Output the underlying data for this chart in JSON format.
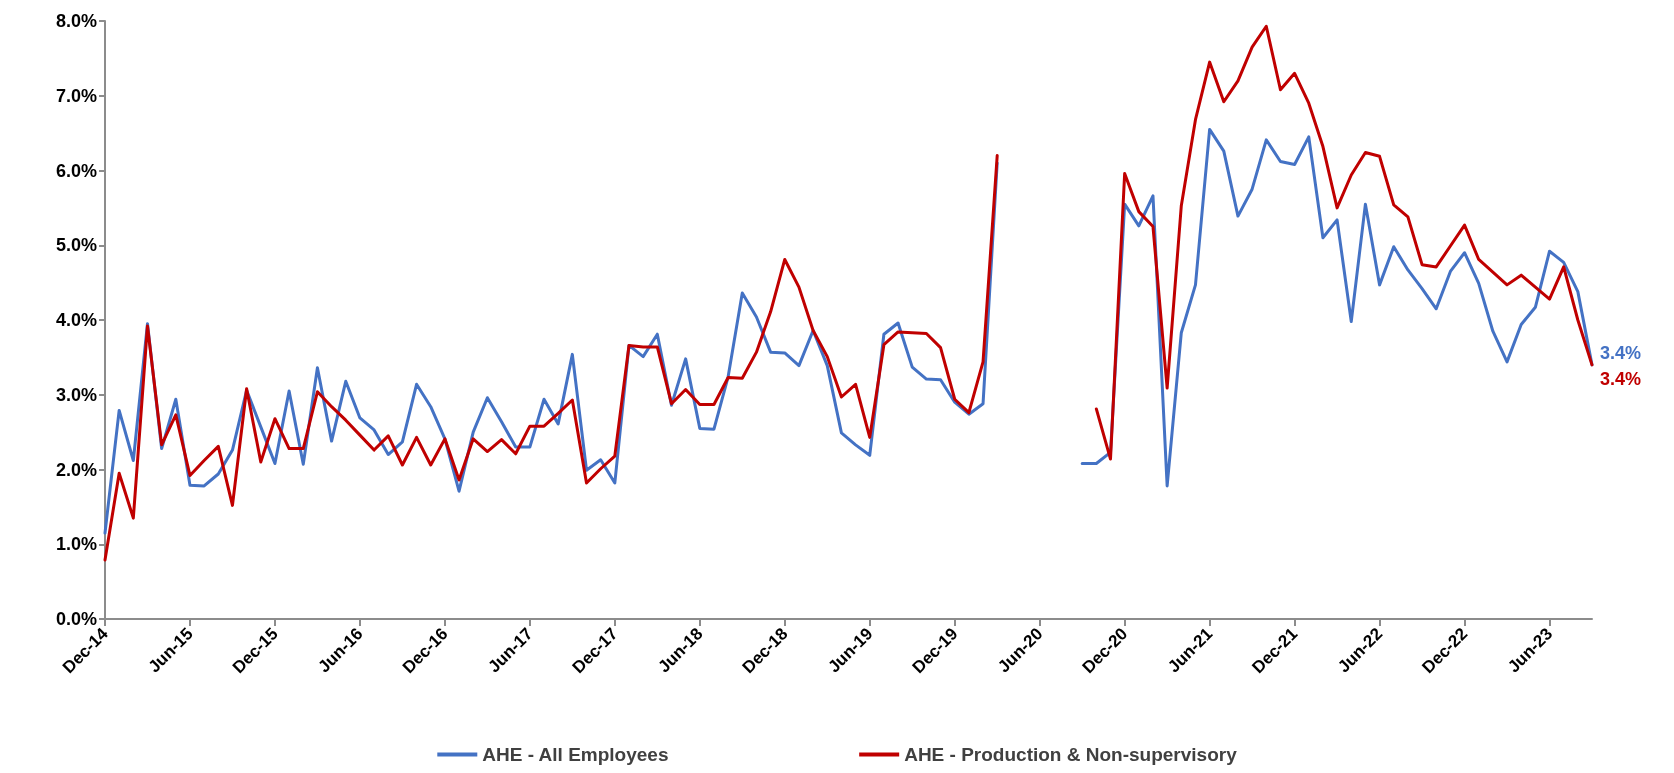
{
  "chart_data": {
    "type": "line",
    "x": [
      "2014-12",
      "2015-01",
      "2015-02",
      "2015-03",
      "2015-04",
      "2015-05",
      "2015-06",
      "2015-07",
      "2015-08",
      "2015-09",
      "2015-10",
      "2015-11",
      "2015-12",
      "2016-01",
      "2016-02",
      "2016-03",
      "2016-04",
      "2016-05",
      "2016-06",
      "2016-07",
      "2016-08",
      "2016-09",
      "2016-10",
      "2016-11",
      "2016-12",
      "2017-01",
      "2017-02",
      "2017-03",
      "2017-04",
      "2017-05",
      "2017-06",
      "2017-07",
      "2017-08",
      "2017-09",
      "2017-10",
      "2017-11",
      "2017-12",
      "2018-01",
      "2018-02",
      "2018-03",
      "2018-04",
      "2018-05",
      "2018-06",
      "2018-07",
      "2018-08",
      "2018-09",
      "2018-10",
      "2018-11",
      "2018-12",
      "2019-01",
      "2019-02",
      "2019-03",
      "2019-04",
      "2019-05",
      "2019-06",
      "2019-07",
      "2019-08",
      "2019-09",
      "2019-10",
      "2019-11",
      "2019-12",
      "2020-01",
      "2020-02",
      "2020-03",
      "2020-04",
      "2020-05",
      "2020-06",
      "2020-07",
      "2020-08",
      "2020-09",
      "2020-10",
      "2020-11",
      "2020-12",
      "2021-01",
      "2021-02",
      "2021-03",
      "2021-04",
      "2021-05",
      "2021-06",
      "2021-07",
      "2021-08",
      "2021-09",
      "2021-10",
      "2021-11",
      "2021-12",
      "2022-01",
      "2022-02",
      "2022-03",
      "2022-04",
      "2022-05",
      "2022-06",
      "2022-07",
      "2022-08",
      "2022-09",
      "2022-10",
      "2022-11",
      "2022-12",
      "2023-01",
      "2023-02",
      "2023-03",
      "2023-04",
      "2023-05",
      "2023-06",
      "2023-07",
      "2023-08",
      "2023-09"
    ],
    "series": [
      {
        "name": "AHE - All Employees",
        "color": "#4472c4",
        "values": [
          1.15,
          2.79,
          2.12,
          3.95,
          2.28,
          2.94,
          1.79,
          1.78,
          1.94,
          2.26,
          3.06,
          2.57,
          2.08,
          3.05,
          2.07,
          3.36,
          2.38,
          3.18,
          2.69,
          2.53,
          2.2,
          2.37,
          3.14,
          2.84,
          2.41,
          1.71,
          2.5,
          2.96,
          2.64,
          2.3,
          2.3,
          2.94,
          2.61,
          3.54,
          1.99,
          2.13,
          1.82,
          3.66,
          3.51,
          3.81,
          2.86,
          3.48,
          2.55,
          2.54,
          3.24,
          4.36,
          4.04,
          3.57,
          3.56,
          3.39,
          3.86,
          3.39,
          2.49,
          2.33,
          2.19,
          3.81,
          3.96,
          3.37,
          3.21,
          3.2,
          2.9,
          2.74,
          2.88,
          6.1,
          null,
          null,
          null,
          null,
          null,
          2.08,
          2.08,
          2.23,
          5.55,
          5.26,
          5.66,
          1.78,
          3.83,
          4.47,
          6.55,
          6.26,
          5.39,
          5.75,
          6.41,
          6.12,
          6.08,
          6.45,
          5.1,
          5.34,
          3.98,
          5.55,
          4.47,
          4.98,
          4.67,
          4.42,
          4.15,
          4.65,
          4.9,
          4.49,
          3.85,
          3.44,
          3.94,
          4.17,
          4.92,
          4.77,
          4.38,
          3.4
        ],
        "value_labels": [
          null,
          null,
          null,
          null,
          null,
          null,
          null,
          null,
          null,
          null,
          null,
          null,
          null,
          null,
          null,
          null,
          null,
          null,
          null,
          null,
          null,
          null,
          null,
          null,
          null,
          null,
          null,
          null,
          null,
          null,
          null,
          null,
          null,
          null,
          null,
          null,
          null,
          null,
          null,
          null,
          null,
          null,
          null,
          null,
          null,
          null,
          null,
          null,
          null,
          null,
          null,
          null,
          null,
          null,
          null,
          null,
          null,
          null,
          null,
          null,
          null,
          null,
          null,
          null,
          null,
          null,
          null,
          null,
          null,
          null,
          null,
          null,
          null,
          null,
          null,
          null,
          null,
          null,
          null,
          null,
          null,
          null,
          null,
          null,
          null,
          null,
          null,
          null,
          null,
          null,
          null,
          null,
          null,
          null,
          null,
          null,
          null,
          null,
          null,
          null,
          null,
          null,
          null,
          null,
          null,
          "3.4%"
        ]
      },
      {
        "name": "AHE - Production & Non-supervisory",
        "color": "#c00000",
        "values": [
          0.79,
          1.95,
          1.35,
          3.92,
          2.33,
          2.73,
          1.92,
          2.12,
          2.31,
          1.52,
          3.08,
          2.1,
          2.68,
          2.28,
          2.28,
          3.04,
          2.84,
          2.66,
          2.46,
          2.26,
          2.45,
          2.06,
          2.43,
          2.06,
          2.41,
          1.86,
          2.41,
          2.24,
          2.4,
          2.21,
          2.58,
          2.58,
          2.75,
          2.93,
          1.82,
          2.01,
          2.18,
          3.66,
          3.64,
          3.64,
          2.88,
          3.07,
          2.87,
          2.87,
          3.23,
          3.22,
          3.57,
          4.11,
          4.81,
          4.44,
          3.86,
          3.51,
          2.97,
          3.14,
          2.43,
          3.67,
          3.84,
          3.83,
          3.82,
          3.63,
          2.94,
          2.76,
          3.44,
          6.2,
          null,
          null,
          null,
          null,
          null,
          null,
          2.81,
          2.14,
          5.96,
          5.45,
          5.25,
          3.09,
          5.53,
          6.68,
          7.45,
          6.92,
          7.2,
          7.65,
          7.93,
          7.08,
          7.3,
          6.9,
          6.32,
          5.5,
          5.94,
          6.24,
          6.19,
          5.54,
          5.38,
          4.74,
          4.71,
          4.99,
          5.27,
          4.81,
          4.64,
          4.47,
          4.6,
          4.44,
          4.28,
          4.71,
          4.0,
          3.4
        ],
        "value_labels": [
          null,
          null,
          null,
          null,
          null,
          null,
          null,
          null,
          null,
          null,
          null,
          null,
          null,
          null,
          null,
          null,
          null,
          null,
          null,
          null,
          null,
          null,
          null,
          null,
          null,
          null,
          null,
          null,
          null,
          null,
          null,
          null,
          null,
          null,
          null,
          null,
          null,
          null,
          null,
          null,
          null,
          null,
          null,
          null,
          null,
          null,
          null,
          null,
          null,
          null,
          null,
          null,
          null,
          null,
          null,
          null,
          null,
          null,
          null,
          null,
          null,
          null,
          null,
          null,
          null,
          null,
          null,
          null,
          null,
          null,
          null,
          null,
          null,
          null,
          null,
          null,
          null,
          null,
          null,
          null,
          null,
          null,
          null,
          null,
          null,
          null,
          null,
          null,
          null,
          null,
          null,
          null,
          null,
          null,
          null,
          null,
          null,
          null,
          null,
          null,
          null,
          null,
          null,
          null,
          null,
          "3.4%"
        ]
      }
    ],
    "xlim": [
      "2014-12",
      "2023-09"
    ],
    "xticks": [
      {
        "value": "2014-12",
        "label": "Dec-14"
      },
      {
        "value": "2015-06",
        "label": "Jun-15"
      },
      {
        "value": "2015-12",
        "label": "Dec-15"
      },
      {
        "value": "2016-06",
        "label": "Jun-16"
      },
      {
        "value": "2016-12",
        "label": "Dec-16"
      },
      {
        "value": "2017-06",
        "label": "Jun-17"
      },
      {
        "value": "2017-12",
        "label": "Dec-17"
      },
      {
        "value": "2018-06",
        "label": "Jun-18"
      },
      {
        "value": "2018-12",
        "label": "Dec-18"
      },
      {
        "value": "2019-06",
        "label": "Jun-19"
      },
      {
        "value": "2019-12",
        "label": "Dec-19"
      },
      {
        "value": "2020-06",
        "label": "Jun-20"
      },
      {
        "value": "2020-12",
        "label": "Dec-20"
      },
      {
        "value": "2021-06",
        "label": "Jun-21"
      },
      {
        "value": "2021-12",
        "label": "Dec-21"
      },
      {
        "value": "2022-06",
        "label": "Jun-22"
      },
      {
        "value": "2022-12",
        "label": "Dec-22"
      },
      {
        "value": "2023-06",
        "label": "Jun-23"
      }
    ],
    "ylim": [
      0,
      8
    ],
    "yticks": [
      {
        "value": 0,
        "label": "0.0%"
      },
      {
        "value": 1,
        "label": "1.0%"
      },
      {
        "value": 2,
        "label": "2.0%"
      },
      {
        "value": 3,
        "label": "3.0%"
      },
      {
        "value": 4,
        "label": "4.0%"
      },
      {
        "value": 5,
        "label": "5.0%"
      },
      {
        "value": 6,
        "label": "6.0%"
      },
      {
        "value": 7,
        "label": "7.0%"
      },
      {
        "value": 8,
        "label": "8.0%"
      }
    ],
    "grid": false,
    "legend": "bottom",
    "marker": "none",
    "line_style": "solid"
  }
}
